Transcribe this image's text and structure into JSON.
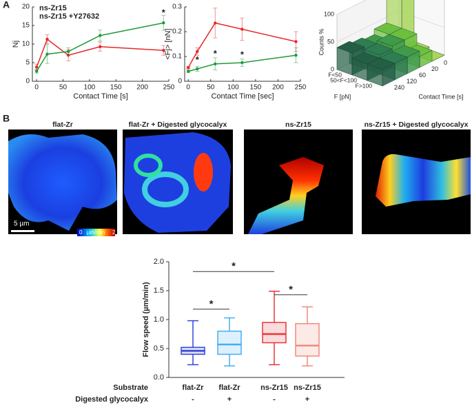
{
  "figure": {
    "panel_labels": [
      "A",
      "B"
    ],
    "images": [
      {
        "title": "flat-Zr",
        "color": "#2233cc"
      },
      {
        "title": "flat-Zr + Digested glycocalyx",
        "color": "#29a3e8"
      },
      {
        "title": "ns-Zr15",
        "color": "#e02020"
      },
      {
        "title": "ns-Zr15 + Digested glycocalyx",
        "color": "#f0857a"
      }
    ],
    "scale_bar": "5 µm",
    "colorbar": [
      "0",
      "µm/min",
      "2"
    ]
  },
  "chart_data": [
    {
      "type": "line",
      "xlabel": "Contact Time [s]",
      "ylabel": "Nj",
      "x": [
        0,
        20,
        60,
        120,
        240
      ],
      "series": [
        {
          "name": "ns-Zr15",
          "color": "#e8262b",
          "values": [
            3.8,
            11.3,
            7.0,
            9.3,
            8.3
          ],
          "errors": [
            0.8,
            1.2,
            1.5,
            1.2,
            1.3
          ]
        },
        {
          "name": "ns-Zr15 +Y27632",
          "color": "#1f9a3a",
          "values": [
            2.7,
            7.3,
            8.0,
            12.3,
            15.7
          ],
          "errors": [
            0.5,
            2.5,
            1.0,
            1.5,
            2.0
          ]
        }
      ],
      "xlim": [
        -8,
        250
      ],
      "xticks": [
        0,
        50,
        100,
        150,
        200,
        250
      ],
      "ylim": [
        0,
        20
      ],
      "yticks": [
        0,
        5,
        10,
        15,
        20
      ],
      "annotations": [
        {
          "text": "*",
          "x": 240,
          "y": 18.3
        }
      ]
    },
    {
      "type": "line",
      "xlabel": "Contact Time [sec]",
      "ylabel": "<Fj> [nN]",
      "x": [
        0,
        20,
        60,
        120,
        240
      ],
      "series": [
        {
          "color": "#e8262b",
          "values": [
            0.055,
            0.12,
            0.235,
            0.21,
            0.16
          ],
          "errors": [
            0.005,
            0.015,
            0.06,
            0.045,
            0.04
          ]
        },
        {
          "color": "#1f9a3a",
          "values": [
            0.04,
            0.05,
            0.07,
            0.075,
            0.105
          ],
          "errors": [
            0.005,
            0.01,
            0.025,
            0.015,
            0.03
          ]
        }
      ],
      "xlim": [
        -8,
        250
      ],
      "xticks": [
        0,
        50,
        100,
        150,
        200,
        250
      ],
      "ylim": [
        0,
        0.3
      ],
      "yticks": [
        0,
        0.1,
        0.2,
        0.3
      ],
      "annotations": [
        {
          "text": "*",
          "x": 20,
          "y": 0.085
        },
        {
          "text": "*",
          "x": 60,
          "y": 0.11
        },
        {
          "text": "*",
          "x": 120,
          "y": 0.105
        }
      ]
    },
    {
      "type": "bar3d",
      "zlabel": "Counts %",
      "xlabel": "F [pN]",
      "ylabel": "Contact Time [s]",
      "categories": [
        "F<50",
        "50<F<100",
        "F>100"
      ],
      "series": [
        {
          "name": "0",
          "color": "#a8d65a",
          "values": [
            95,
            5,
            0
          ]
        },
        {
          "name": "20",
          "color": "#6cc040",
          "values": [
            40,
            40,
            20
          ]
        },
        {
          "name": "60",
          "color": "#3f9a4a",
          "values": [
            30,
            40,
            30
          ]
        },
        {
          "name": "120",
          "color": "#2f7d52",
          "values": [
            35,
            35,
            30
          ]
        },
        {
          "name": "240",
          "color": "#235e45",
          "values": [
            40,
            30,
            30
          ]
        }
      ],
      "zlim": [
        0,
        100
      ],
      "zticks": [
        0,
        50,
        100
      ]
    },
    {
      "type": "box",
      "ylabel": "Flow speed (µm/min)",
      "row_labels": [
        "Substrate",
        "Digested glycocalyx"
      ],
      "categories": [
        "flat-Zr",
        "flat-Zr",
        "ns-Zr15",
        "ns-Zr15"
      ],
      "digested": [
        "-",
        "+",
        "-",
        "+"
      ],
      "colors": [
        "#3346d6",
        "#45aef2",
        "#e8353a",
        "#f08a7c"
      ],
      "boxes": [
        {
          "min": 0.22,
          "q1": 0.4,
          "median": 0.46,
          "q3": 0.52,
          "max": 0.98
        },
        {
          "min": 0.2,
          "q1": 0.4,
          "median": 0.57,
          "q3": 0.8,
          "max": 1.03
        },
        {
          "min": 0.22,
          "q1": 0.6,
          "median": 0.75,
          "q3": 0.95,
          "max": 1.49
        },
        {
          "min": 0.2,
          "q1": 0.37,
          "median": 0.55,
          "q3": 0.93,
          "max": 1.22
        }
      ],
      "ylim": [
        0,
        2
      ],
      "yticks": [
        {
          "value": 0,
          "label": "0.0"
        },
        {
          "value": 0.5,
          "label": "0.5"
        },
        {
          "value": 1,
          "label": "1.0"
        },
        {
          "value": 1.5,
          "label": "1.5"
        },
        {
          "value": 2,
          "label": "2.0"
        }
      ],
      "brackets": [
        {
          "from": 0,
          "to": 1,
          "y": 1.18,
          "text": "*"
        },
        {
          "from": 0,
          "to": 2,
          "y": 1.83,
          "text": "*"
        },
        {
          "from": 2,
          "to": 3,
          "y": 1.43,
          "text": "*"
        }
      ]
    }
  ]
}
